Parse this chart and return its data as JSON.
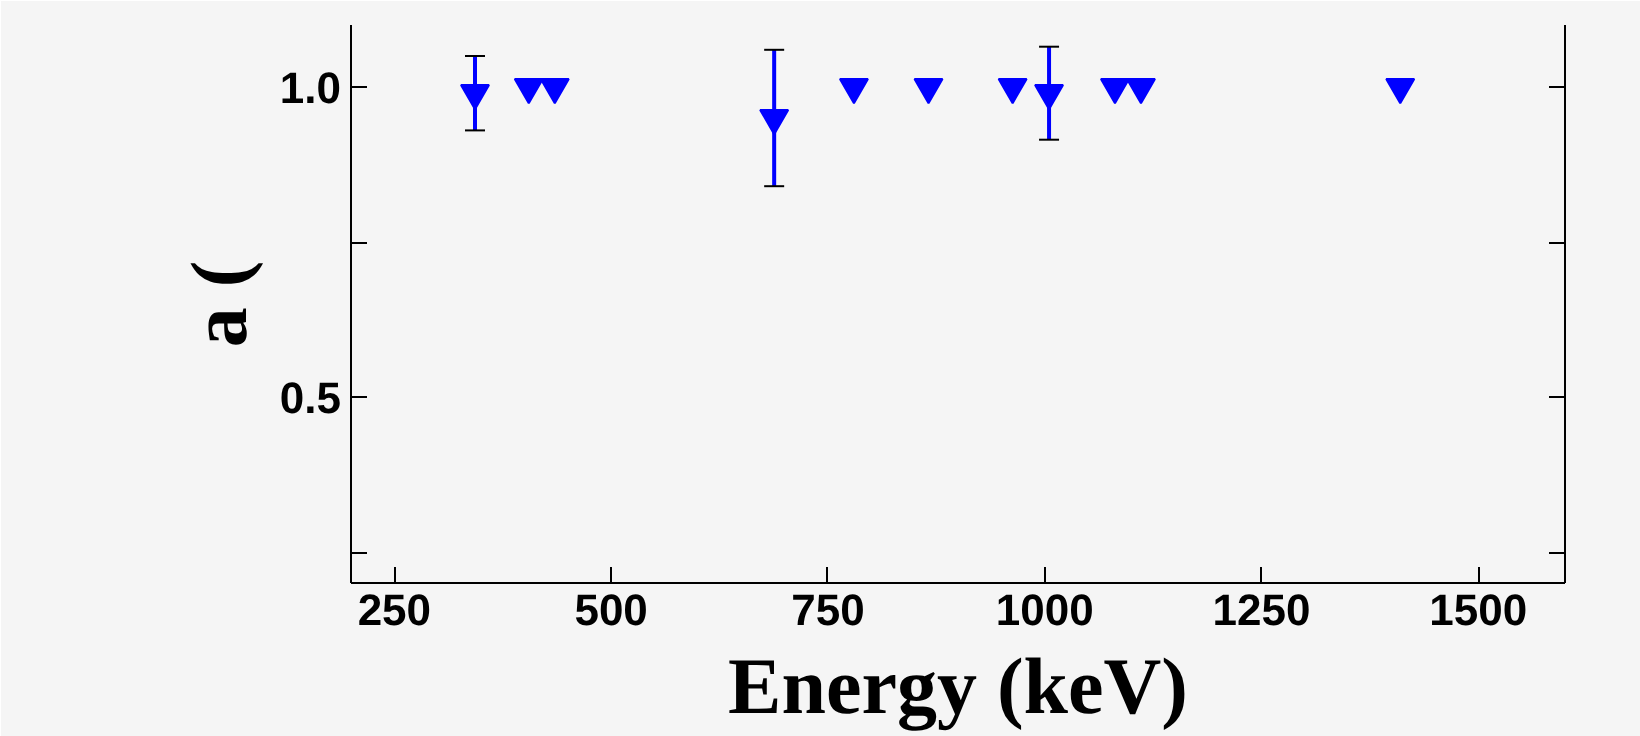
{
  "chart_data": {
    "type": "scatter",
    "xlabel": "Energy (keV)",
    "ylabel": "a (",
    "x": [
      343,
      405,
      435,
      688,
      780,
      866,
      963,
      1005,
      1081,
      1111,
      1410
    ],
    "values": [
      0.99,
      1.0,
      1.0,
      0.95,
      1.0,
      1.0,
      1.0,
      0.99,
      1.0,
      1.0,
      1.0
    ],
    "errors": [
      0.06,
      null,
      null,
      0.11,
      null,
      null,
      null,
      0.075,
      null,
      null,
      null
    ],
    "color": "#0000ff",
    "marker": "triangle",
    "xlim": [
      200,
      1600
    ],
    "xticks": [
      250,
      500,
      750,
      1000,
      1250,
      1500
    ],
    "ylim": [
      0.2,
      1.1
    ],
    "yticks": [
      {
        "value": 0.25,
        "label": null
      },
      0.5,
      {
        "value": 0.75,
        "label": null
      },
      {
        "value": 1.0,
        "label": "1.0"
      }
    ],
    "grid": false
  }
}
